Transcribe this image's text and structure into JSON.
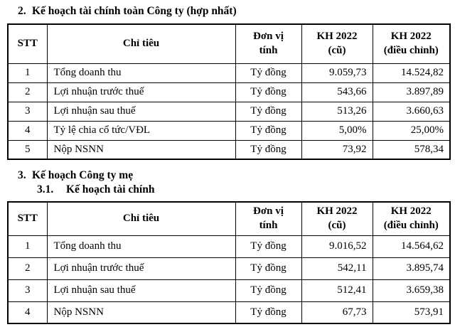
{
  "sections": {
    "consolidated": {
      "number": "2.",
      "title": "Kế hoạch tài chính toàn Công ty (hợp nhất)"
    },
    "parent": {
      "number": "3.",
      "title": "Kế hoạch Công ty mẹ"
    },
    "parent_finance": {
      "number": "3.1.",
      "title": "Kế hoạch tài chính"
    }
  },
  "table_header": {
    "stt": "STT",
    "criteria": "Chỉ tiêu",
    "unit": "Đơn vị\ntính",
    "plan_old": "KH 2022\n(cũ)",
    "plan_adjusted": "KH 2022\n(điều chỉnh)"
  },
  "consolidated_table": {
    "rows": [
      {
        "stt": "1",
        "criteria": "Tổng doanh thu",
        "unit": "Tỷ đồng",
        "old": "9.059,73",
        "adjusted": "14.524,82"
      },
      {
        "stt": "2",
        "criteria": "Lợi nhuận trước thuế",
        "unit": "Tỷ đồng",
        "old": "543,66",
        "adjusted": "3.897,89"
      },
      {
        "stt": "3",
        "criteria": "Lợi nhuận sau thuế",
        "unit": "Tỷ đồng",
        "old": "513,26",
        "adjusted": "3.660,63"
      },
      {
        "stt": "4",
        "criteria": "Tỷ lệ chia cổ tức/VĐL",
        "unit": "Tỷ đồng",
        "old": "5,00%",
        "adjusted": "25,00%"
      },
      {
        "stt": "5",
        "criteria": "Nộp NSNN",
        "unit": "Tỷ đồng",
        "old": "73,92",
        "adjusted": "578,34"
      }
    ]
  },
  "parent_table": {
    "rows": [
      {
        "stt": "1",
        "criteria": "Tổng doanh thu",
        "unit": "Tỷ đồng",
        "old": "9.016,52",
        "adjusted": "14.564,62"
      },
      {
        "stt": "2",
        "criteria": "Lợi nhuận trước thuế",
        "unit": "Tỷ đồng",
        "old": "542,11",
        "adjusted": "3.895,74"
      },
      {
        "stt": "3",
        "criteria": "Lợi nhuận sau thuế",
        "unit": "Tỷ đồng",
        "old": "512,41",
        "adjusted": "3.659,38"
      },
      {
        "stt": "4",
        "criteria": "Nộp NSNN",
        "unit": "Tỷ đồng",
        "old": "67,73",
        "adjusted": "573,91"
      }
    ]
  }
}
